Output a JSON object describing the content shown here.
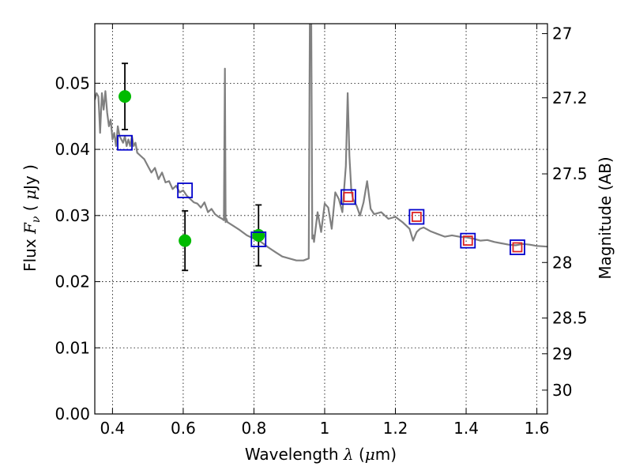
{
  "chart_data": {
    "type": "scatter",
    "xlabel_text": "Wavelength",
    "xlabel_symbol": "λ",
    "xlabel_unit_open": " (",
    "xlabel_unit_mu": "μ",
    "xlabel_unit_close": "m)",
    "ylabel_text": "Flux",
    "ylabel_symbol": "F",
    "ylabel_symbol_sub": "ν",
    "ylabel_unit_open": " ( ",
    "ylabel_unit_mu": "μ",
    "ylabel_unit_close": "Jy )",
    "y2label": "Magnitude (AB)",
    "xlim": [
      0.35,
      1.63
    ],
    "ylim": [
      0.0,
      0.059
    ],
    "grid": true,
    "x_ticks": [
      0.4,
      0.6,
      0.8,
      1.0,
      1.2,
      1.4,
      1.6
    ],
    "x_tick_labels": [
      "0.4",
      "0.6",
      "0.8",
      "1",
      "1.2",
      "1.4",
      "1.6"
    ],
    "y_ticks": [
      0.0,
      0.01,
      0.02,
      0.03,
      0.04,
      0.05
    ],
    "y_tick_labels": [
      "0.00",
      "0.01",
      "0.02",
      "0.03",
      "0.04",
      "0.05"
    ],
    "y2_ticks": [
      {
        "flux": 0.0575,
        "label": "27"
      },
      {
        "flux": 0.0478,
        "label": "27.2"
      },
      {
        "flux": 0.0363,
        "label": "27.5"
      },
      {
        "flux": 0.0229,
        "label": "28"
      },
      {
        "flux": 0.0145,
        "label": "28.5"
      },
      {
        "flux": 0.0091,
        "label": "29"
      },
      {
        "flux": 0.0036,
        "label": "30"
      }
    ],
    "colors": {
      "template": "#808080",
      "observed": "#00bb00",
      "model_box": "#0000cc",
      "ir_box": "#dd2222",
      "errorbar": "#000000"
    },
    "series": [
      {
        "role": "template",
        "style": "line",
        "x": [
          0.35,
          0.355,
          0.36,
          0.362,
          0.365,
          0.37,
          0.375,
          0.38,
          0.385,
          0.39,
          0.395,
          0.4,
          0.405,
          0.41,
          0.415,
          0.42,
          0.425,
          0.43,
          0.435,
          0.44,
          0.445,
          0.45,
          0.455,
          0.46,
          0.465,
          0.47,
          0.48,
          0.49,
          0.5,
          0.51,
          0.52,
          0.53,
          0.54,
          0.55,
          0.56,
          0.57,
          0.58,
          0.59,
          0.6,
          0.61,
          0.62,
          0.63,
          0.64,
          0.65,
          0.66,
          0.67,
          0.68,
          0.69,
          0.7,
          0.71,
          0.715,
          0.718,
          0.72,
          0.722,
          0.725,
          0.74,
          0.76,
          0.78,
          0.8,
          0.82,
          0.84,
          0.86,
          0.88,
          0.9,
          0.92,
          0.94,
          0.955,
          0.958,
          0.96,
          0.962,
          0.965,
          0.968,
          0.97,
          0.98,
          0.99,
          1.0,
          1.01,
          1.02,
          1.03,
          1.04,
          1.05,
          1.06,
          1.065,
          1.07,
          1.075,
          1.08,
          1.09,
          1.1,
          1.11,
          1.12,
          1.13,
          1.14,
          1.16,
          1.18,
          1.2,
          1.22,
          1.24,
          1.25,
          1.26,
          1.27,
          1.28,
          1.3,
          1.32,
          1.34,
          1.36,
          1.38,
          1.4,
          1.42,
          1.44,
          1.46,
          1.48,
          1.5,
          1.52,
          1.54,
          1.56,
          1.58,
          1.6,
          1.63
        ],
        "y": [
          0.0475,
          0.0485,
          0.048,
          0.046,
          0.0425,
          0.0485,
          0.046,
          0.0488,
          0.0455,
          0.0435,
          0.0445,
          0.0415,
          0.0425,
          0.0405,
          0.0435,
          0.042,
          0.0415,
          0.041,
          0.042,
          0.0405,
          0.0415,
          0.0405,
          0.042,
          0.0405,
          0.041,
          0.0395,
          0.039,
          0.0385,
          0.0375,
          0.0365,
          0.0372,
          0.0355,
          0.0365,
          0.035,
          0.0352,
          0.034,
          0.0345,
          0.0335,
          0.0338,
          0.033,
          0.0325,
          0.032,
          0.0318,
          0.0312,
          0.032,
          0.0305,
          0.031,
          0.0302,
          0.0298,
          0.0295,
          0.0293,
          0.0522,
          0.029,
          0.0295,
          0.029,
          0.0285,
          0.0278,
          0.027,
          0.0265,
          0.026,
          0.0252,
          0.0245,
          0.0238,
          0.0235,
          0.0232,
          0.0232,
          0.0235,
          0.059,
          0.059,
          0.059,
          0.0265,
          0.027,
          0.026,
          0.0305,
          0.0275,
          0.0318,
          0.0312,
          0.028,
          0.0335,
          0.0325,
          0.0305,
          0.0375,
          0.0485,
          0.039,
          0.034,
          0.0325,
          0.0315,
          0.03,
          0.032,
          0.0352,
          0.031,
          0.0302,
          0.0305,
          0.0295,
          0.0298,
          0.029,
          0.028,
          0.0262,
          0.0275,
          0.028,
          0.0282,
          0.0276,
          0.0272,
          0.0268,
          0.027,
          0.0268,
          0.0267,
          0.0265,
          0.0262,
          0.0263,
          0.026,
          0.0258,
          0.0256,
          0.0255,
          0.0257,
          0.0256,
          0.0254,
          0.0253
        ]
      },
      {
        "role": "observed",
        "style": "circle",
        "points": [
          {
            "x": 0.435,
            "y": 0.048,
            "yerr": 0.005
          },
          {
            "x": 0.605,
            "y": 0.0262,
            "yerr": 0.0045
          },
          {
            "x": 0.813,
            "y": 0.027,
            "yerr": 0.0046
          }
        ]
      },
      {
        "role": "model_box",
        "style": "square",
        "points": [
          {
            "x": 0.435,
            "y": 0.041
          },
          {
            "x": 0.605,
            "y": 0.0338
          },
          {
            "x": 0.813,
            "y": 0.0264
          },
          {
            "x": 1.067,
            "y": 0.0328
          },
          {
            "x": 1.26,
            "y": 0.0298
          },
          {
            "x": 1.405,
            "y": 0.0262
          },
          {
            "x": 1.545,
            "y": 0.0252
          }
        ]
      },
      {
        "role": "ir_box",
        "style": "square",
        "points": [
          {
            "x": 1.067,
            "y": 0.0328
          },
          {
            "x": 1.26,
            "y": 0.0298
          },
          {
            "x": 1.405,
            "y": 0.0262
          },
          {
            "x": 1.545,
            "y": 0.0252
          }
        ]
      }
    ]
  }
}
